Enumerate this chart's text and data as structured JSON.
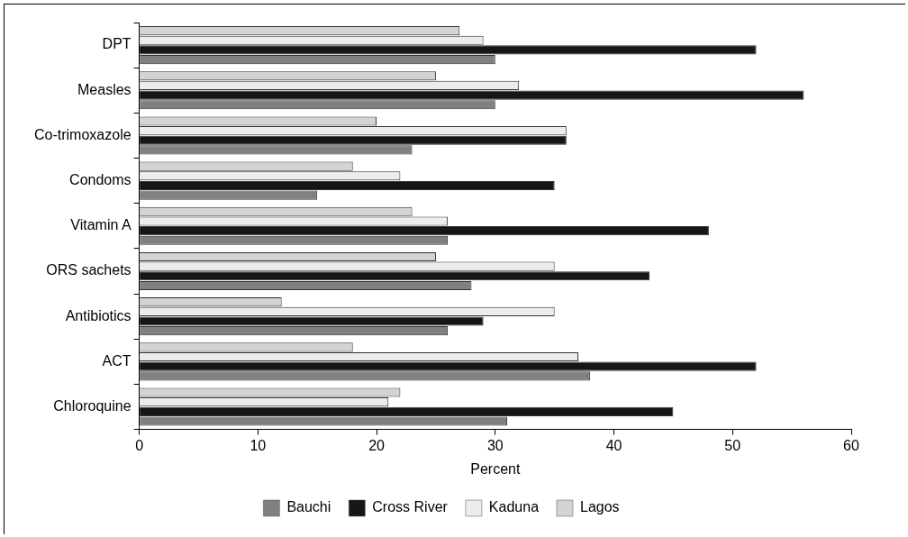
{
  "chart_data": {
    "type": "bar",
    "orientation": "horizontal",
    "xlabel": "Percent",
    "categories": [
      "DPT",
      "Measles",
      "Co-trimoxazole",
      "Condoms",
      "Vitamin A",
      "ORS sachets",
      "Antibiotics",
      "ACT",
      "Chloroquine"
    ],
    "series": [
      {
        "name": "Bauchi",
        "color": "#808080",
        "values": [
          30,
          30,
          23,
          15,
          26,
          28,
          26,
          38,
          31
        ]
      },
      {
        "name": "Cross River",
        "color": "#161616",
        "values": [
          52,
          56,
          36,
          35,
          48,
          43,
          29,
          52,
          45
        ]
      },
      {
        "name": "Kaduna",
        "color": "#ececec",
        "values": [
          29,
          32,
          36,
          22,
          26,
          35,
          35,
          37,
          21
        ]
      },
      {
        "name": "Lagos",
        "color": "#d3d3d3",
        "values": [
          27,
          25,
          20,
          18,
          23,
          25,
          12,
          18,
          22
        ]
      }
    ],
    "xlim": [
      0,
      60
    ],
    "xticks": [
      0,
      10,
      20,
      30,
      40,
      50,
      60
    ],
    "grid": false,
    "legend": "bottom"
  }
}
